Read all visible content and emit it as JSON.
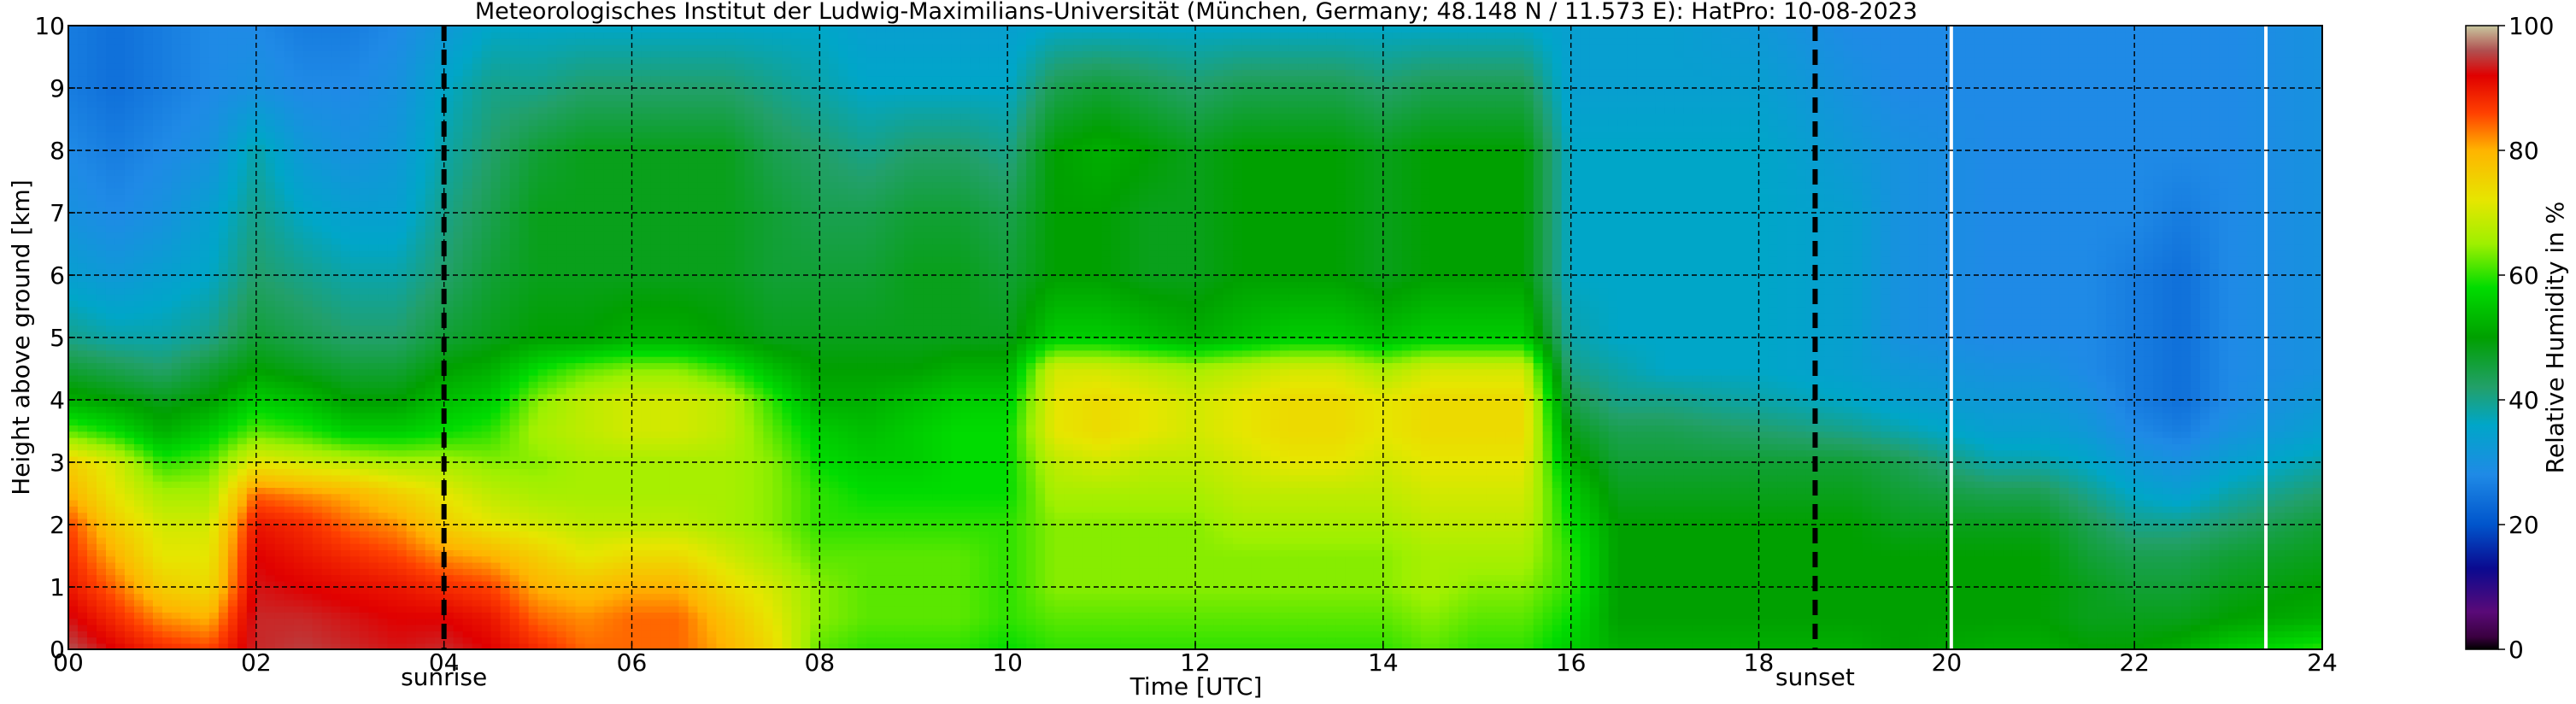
{
  "chart_data": {
    "type": "heatmap",
    "title": "Meteorologisches Institut der Ludwig-Maximilians-Universität (München, Germany; 48.148 N / 11.573 E):    HatPro: 10-08-2023",
    "xlabel": "Time [UTC]",
    "ylabel": "Height above ground [km]",
    "xlim": [
      0,
      24
    ],
    "ylim": [
      0,
      10
    ],
    "x_ticks": [
      0,
      2,
      4,
      6,
      8,
      10,
      12,
      14,
      16,
      18,
      20,
      22,
      24
    ],
    "x_tick_labels": [
      "00",
      "02",
      "04",
      "06",
      "08",
      "10",
      "12",
      "14",
      "16",
      "18",
      "20",
      "22",
      "24"
    ],
    "y_ticks": [
      0,
      1,
      2,
      3,
      4,
      5,
      6,
      7,
      8,
      9,
      10
    ],
    "y_tick_labels": [
      "0",
      "1",
      "2",
      "3",
      "4",
      "5",
      "6",
      "7",
      "8",
      "9",
      "10"
    ],
    "grid": true,
    "markers": [
      {
        "label": "sunrise",
        "time": 4.0
      },
      {
        "label": "sunset",
        "time": 18.6
      }
    ],
    "data_gaps_time": [
      20.05,
      23.4
    ],
    "colorbar": {
      "label": "Relative Humidity in %",
      "range": [
        0,
        100
      ],
      "ticks": [
        0,
        20,
        40,
        60,
        80,
        100
      ],
      "stops": [
        {
          "value": 0,
          "color": "#000000"
        },
        {
          "value": 2,
          "color": "#3a0040"
        },
        {
          "value": 6,
          "color": "#5a0a78"
        },
        {
          "value": 13,
          "color": "#0a0a90"
        },
        {
          "value": 20,
          "color": "#0055cc"
        },
        {
          "value": 28,
          "color": "#1f8ae6"
        },
        {
          "value": 36,
          "color": "#00a6c8"
        },
        {
          "value": 42,
          "color": "#22a06a"
        },
        {
          "value": 50,
          "color": "#00a000"
        },
        {
          "value": 58,
          "color": "#00dc00"
        },
        {
          "value": 65,
          "color": "#9ef000"
        },
        {
          "value": 72,
          "color": "#e6e600"
        },
        {
          "value": 80,
          "color": "#ffb400"
        },
        {
          "value": 86,
          "color": "#ff4000"
        },
        {
          "value": 92,
          "color": "#e00000"
        },
        {
          "value": 96,
          "color": "#b05050"
        },
        {
          "value": 100,
          "color": "#c8c8a0"
        }
      ]
    },
    "humidity_profile": {
      "heights_km": [
        0,
        0.5,
        1,
        1.5,
        2,
        2.5,
        3,
        3.5,
        4,
        4.5,
        5,
        6,
        7,
        8,
        9,
        10
      ],
      "columns": [
        {
          "t": 0.0,
          "rh": [
            96,
            93,
            90,
            88,
            86,
            80,
            76,
            62,
            52,
            46,
            40,
            34,
            30,
            28,
            26,
            26
          ]
        },
        {
          "t": 0.5,
          "rh": [
            92,
            88,
            84,
            80,
            76,
            72,
            70,
            58,
            50,
            44,
            38,
            32,
            28,
            26,
            24,
            24
          ]
        },
        {
          "t": 1.0,
          "rh": [
            88,
            82,
            76,
            72,
            70,
            66,
            60,
            52,
            48,
            42,
            38,
            34,
            30,
            28,
            26,
            26
          ]
        },
        {
          "t": 1.5,
          "rh": [
            86,
            80,
            74,
            72,
            70,
            66,
            62,
            56,
            50,
            46,
            40,
            36,
            34,
            30,
            28,
            28
          ]
        },
        {
          "t": 2.0,
          "rh": [
            94,
            94,
            93,
            92,
            90,
            84,
            72,
            62,
            56,
            50,
            46,
            42,
            40,
            38,
            30,
            28
          ]
        },
        {
          "t": 2.5,
          "rh": [
            95,
            94,
            92,
            90,
            88,
            82,
            70,
            60,
            54,
            48,
            44,
            40,
            36,
            32,
            28,
            26
          ]
        },
        {
          "t": 3.0,
          "rh": [
            94,
            93,
            91,
            88,
            84,
            80,
            68,
            56,
            50,
            46,
            42,
            38,
            34,
            30,
            28,
            26
          ]
        },
        {
          "t": 3.5,
          "rh": [
            93,
            92,
            90,
            86,
            82,
            76,
            66,
            56,
            50,
            46,
            42,
            38,
            34,
            32,
            30,
            28
          ]
        },
        {
          "t": 4.0,
          "rh": [
            94,
            92,
            88,
            82,
            76,
            72,
            66,
            58,
            54,
            50,
            46,
            42,
            40,
            38,
            36,
            32
          ]
        },
        {
          "t": 4.5,
          "rh": [
            92,
            90,
            86,
            80,
            72,
            68,
            64,
            60,
            56,
            52,
            48,
            46,
            44,
            42,
            40,
            36
          ]
        },
        {
          "t": 5.0,
          "rh": [
            88,
            84,
            80,
            76,
            70,
            66,
            64,
            66,
            64,
            58,
            50,
            48,
            48,
            46,
            40,
            36
          ]
        },
        {
          "t": 5.5,
          "rh": [
            84,
            82,
            78,
            72,
            68,
            66,
            66,
            68,
            68,
            62,
            50,
            48,
            48,
            48,
            42,
            36
          ]
        },
        {
          "t": 6.0,
          "rh": [
            84,
            84,
            80,
            74,
            68,
            66,
            66,
            70,
            70,
            64,
            52,
            48,
            48,
            48,
            42,
            36
          ]
        },
        {
          "t": 6.5,
          "rh": [
            84,
            84,
            80,
            74,
            68,
            66,
            66,
            70,
            70,
            64,
            52,
            48,
            48,
            48,
            42,
            36
          ]
        },
        {
          "t": 7.0,
          "rh": [
            80,
            78,
            74,
            70,
            66,
            66,
            66,
            68,
            68,
            60,
            50,
            48,
            48,
            48,
            42,
            36
          ]
        },
        {
          "t": 7.5,
          "rh": [
            74,
            72,
            70,
            66,
            64,
            64,
            64,
            62,
            60,
            54,
            48,
            46,
            46,
            44,
            40,
            36
          ]
        },
        {
          "t": 8.0,
          "rh": [
            62,
            64,
            64,
            62,
            60,
            60,
            58,
            56,
            52,
            50,
            48,
            46,
            44,
            42,
            38,
            36
          ]
        },
        {
          "t": 8.5,
          "rh": [
            60,
            62,
            62,
            62,
            60,
            58,
            56,
            54,
            52,
            50,
            48,
            46,
            44,
            40,
            36,
            34
          ]
        },
        {
          "t": 9.0,
          "rh": [
            60,
            62,
            62,
            62,
            60,
            58,
            56,
            56,
            54,
            50,
            48,
            48,
            46,
            42,
            36,
            34
          ]
        },
        {
          "t": 9.5,
          "rh": [
            60,
            62,
            62,
            62,
            60,
            58,
            58,
            58,
            56,
            52,
            48,
            48,
            46,
            42,
            36,
            34
          ]
        },
        {
          "t": 10.0,
          "rh": [
            58,
            60,
            60,
            60,
            60,
            58,
            58,
            58,
            56,
            52,
            48,
            46,
            44,
            40,
            36,
            34
          ]
        },
        {
          "t": 10.5,
          "rh": [
            60,
            62,
            64,
            64,
            64,
            66,
            68,
            72,
            72,
            70,
            56,
            50,
            50,
            50,
            44,
            36
          ]
        },
        {
          "t": 11.0,
          "rh": [
            60,
            62,
            64,
            64,
            64,
            66,
            70,
            74,
            74,
            70,
            56,
            50,
            50,
            52,
            46,
            36
          ]
        },
        {
          "t": 11.5,
          "rh": [
            60,
            62,
            64,
            64,
            64,
            66,
            68,
            72,
            72,
            68,
            54,
            48,
            48,
            50,
            44,
            36
          ]
        },
        {
          "t": 12.0,
          "rh": [
            60,
            62,
            64,
            64,
            64,
            66,
            68,
            70,
            70,
            66,
            52,
            48,
            48,
            48,
            42,
            36
          ]
        },
        {
          "t": 12.5,
          "rh": [
            60,
            62,
            64,
            64,
            66,
            68,
            70,
            72,
            72,
            68,
            54,
            50,
            50,
            50,
            44,
            36
          ]
        },
        {
          "t": 13.0,
          "rh": [
            60,
            62,
            64,
            64,
            66,
            68,
            72,
            74,
            74,
            70,
            56,
            50,
            50,
            50,
            44,
            36
          ]
        },
        {
          "t": 13.5,
          "rh": [
            60,
            62,
            64,
            64,
            66,
            68,
            72,
            74,
            74,
            70,
            56,
            50,
            50,
            50,
            44,
            36
          ]
        },
        {
          "t": 14.0,
          "rh": [
            60,
            62,
            64,
            64,
            66,
            68,
            70,
            72,
            72,
            66,
            54,
            48,
            48,
            48,
            42,
            36
          ]
        },
        {
          "t": 14.5,
          "rh": [
            62,
            64,
            66,
            66,
            68,
            70,
            72,
            74,
            74,
            70,
            56,
            50,
            50,
            50,
            44,
            36
          ]
        },
        {
          "t": 15.0,
          "rh": [
            60,
            62,
            64,
            66,
            68,
            70,
            72,
            74,
            74,
            70,
            56,
            50,
            50,
            50,
            44,
            36
          ]
        },
        {
          "t": 15.5,
          "rh": [
            60,
            62,
            64,
            66,
            68,
            70,
            72,
            74,
            74,
            70,
            56,
            50,
            50,
            50,
            44,
            36
          ]
        },
        {
          "t": 16.0,
          "rh": [
            56,
            58,
            60,
            60,
            58,
            56,
            52,
            48,
            44,
            40,
            38,
            36,
            36,
            36,
            34,
            34
          ]
        },
        {
          "t": 16.5,
          "rh": [
            52,
            50,
            50,
            50,
            50,
            48,
            46,
            44,
            40,
            38,
            36,
            36,
            36,
            36,
            34,
            34
          ]
        },
        {
          "t": 17.0,
          "rh": [
            52,
            50,
            50,
            50,
            50,
            48,
            46,
            44,
            40,
            36,
            36,
            36,
            36,
            36,
            34,
            34
          ]
        },
        {
          "t": 18.0,
          "rh": [
            52,
            50,
            50,
            50,
            50,
            48,
            46,
            42,
            38,
            36,
            36,
            36,
            36,
            36,
            34,
            32
          ]
        },
        {
          "t": 19.0,
          "rh": [
            52,
            50,
            50,
            50,
            50,
            48,
            46,
            40,
            36,
            34,
            34,
            34,
            34,
            32,
            30,
            28
          ]
        },
        {
          "t": 19.5,
          "rh": [
            50,
            50,
            50,
            50,
            48,
            46,
            44,
            38,
            34,
            32,
            30,
            30,
            30,
            30,
            28,
            28
          ]
        },
        {
          "t": 20.5,
          "rh": [
            52,
            50,
            50,
            50,
            48,
            44,
            38,
            34,
            32,
            30,
            28,
            28,
            28,
            28,
            28,
            28
          ]
        },
        {
          "t": 21.0,
          "rh": [
            52,
            50,
            50,
            50,
            48,
            44,
            38,
            34,
            32,
            30,
            28,
            28,
            28,
            28,
            28,
            28
          ]
        },
        {
          "t": 21.5,
          "rh": [
            50,
            48,
            48,
            46,
            44,
            40,
            36,
            32,
            30,
            28,
            28,
            28,
            28,
            28,
            28,
            28
          ]
        },
        {
          "t": 22.0,
          "rh": [
            50,
            48,
            46,
            44,
            40,
            36,
            32,
            28,
            26,
            26,
            26,
            26,
            28,
            28,
            28,
            28
          ]
        },
        {
          "t": 22.5,
          "rh": [
            52,
            48,
            46,
            44,
            40,
            34,
            30,
            26,
            24,
            24,
            24,
            24,
            26,
            28,
            28,
            28
          ]
        },
        {
          "t": 23.0,
          "rh": [
            56,
            50,
            48,
            46,
            42,
            38,
            34,
            30,
            28,
            28,
            28,
            28,
            28,
            28,
            28,
            28
          ]
        },
        {
          "t": 24.0,
          "rh": [
            60,
            52,
            50,
            48,
            46,
            42,
            38,
            34,
            32,
            30,
            30,
            30,
            30,
            30,
            30,
            30
          ]
        }
      ]
    }
  }
}
